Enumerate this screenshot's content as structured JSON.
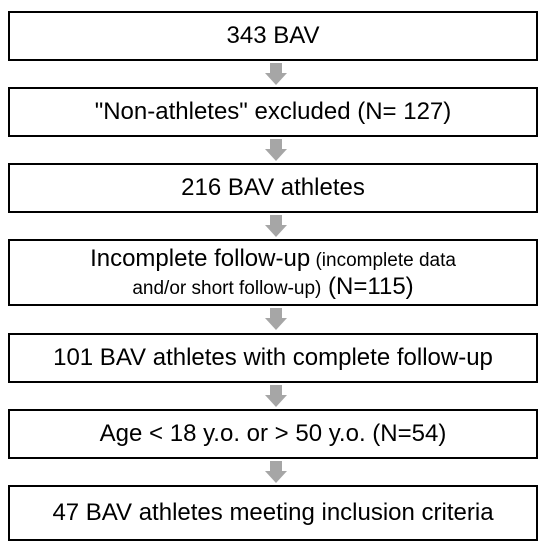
{
  "steps": [
    {
      "text": "343 BAV"
    },
    {
      "text": "\"Non-athletes\" excluded (N= 127)"
    },
    {
      "text": "216 BAV athletes"
    },
    {
      "line1_main": "Incomplete follow-up",
      "line1_small": " (incomplete data",
      "line2_small": "and/or short follow-up)",
      "line2_main": " (N=115)"
    },
    {
      "text": "101 BAV athletes with complete follow-up"
    },
    {
      "text": "Age < 18 y.o. or > 50 y.o. (N=54)"
    },
    {
      "text": "47 BAV athletes meeting inclusion criteria"
    }
  ],
  "colors": {
    "box_border": "#000000",
    "arrow": "#a6a6a6",
    "background": "#ffffff"
  }
}
